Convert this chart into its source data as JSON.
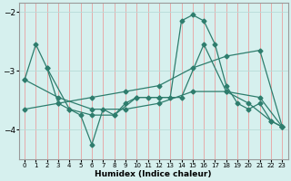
{
  "xlabel": "Humidex (Indice chaleur)",
  "bg_color": "#d6f0ee",
  "grid_color": "#b8dbd8",
  "line_color": "#2e7d6d",
  "marker": "D",
  "markersize": 2.5,
  "linewidth": 0.9,
  "ylim": [
    -4.5,
    -1.85
  ],
  "xlim": [
    -0.5,
    23.5
  ],
  "yticks": [
    -4,
    -3,
    -2
  ],
  "xticks": [
    0,
    1,
    2,
    3,
    4,
    5,
    6,
    7,
    8,
    9,
    10,
    11,
    12,
    13,
    14,
    15,
    16,
    17,
    18,
    19,
    20,
    21,
    22,
    23
  ],
  "lines": [
    {
      "x": [
        0,
        1,
        2,
        3,
        4,
        5,
        6,
        7,
        8,
        9,
        10,
        11,
        12,
        13,
        14,
        15,
        16,
        17,
        18,
        19,
        20,
        21,
        22,
        23
      ],
      "y": [
        -3.15,
        -2.55,
        -2.95,
        -3.55,
        -3.65,
        -3.75,
        -4.25,
        -3.65,
        -3.75,
        -3.55,
        -3.45,
        -3.45,
        -3.45,
        -3.45,
        -2.15,
        -2.05,
        -2.15,
        -2.55,
        -3.25,
        -3.55,
        -3.65,
        -3.55,
        -3.85,
        -3.95
      ]
    },
    {
      "x": [
        0,
        3,
        6,
        9,
        12,
        15,
        18,
        21,
        23
      ],
      "y": [
        -3.65,
        -3.55,
        -3.45,
        -3.35,
        -3.25,
        -2.95,
        -2.75,
        -2.65,
        -3.95
      ]
    },
    {
      "x": [
        0,
        3,
        6,
        9,
        12,
        15,
        18,
        21,
        23
      ],
      "y": [
        -3.15,
        -3.45,
        -3.65,
        -3.65,
        -3.55,
        -3.35,
        -3.35,
        -3.45,
        -3.95
      ]
    },
    {
      "x": [
        2,
        4,
        6,
        8,
        10,
        12,
        14,
        16,
        18,
        20,
        22,
        23
      ],
      "y": [
        -2.95,
        -3.65,
        -3.75,
        -3.75,
        -3.45,
        -3.45,
        -3.45,
        -2.55,
        -3.35,
        -3.55,
        -3.85,
        -3.95
      ]
    }
  ]
}
